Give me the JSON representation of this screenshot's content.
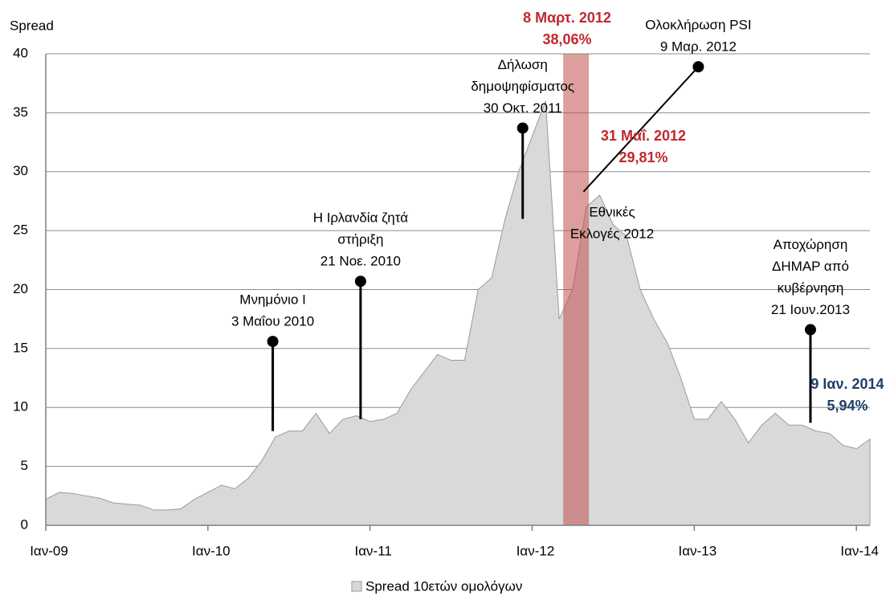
{
  "chart_data": {
    "type": "area",
    "y_axis_label": "Spread",
    "categories": [
      "Ιαν-09",
      null,
      null,
      null,
      null,
      null,
      null,
      null,
      null,
      null,
      null,
      null,
      "Ιαν-10",
      null,
      null,
      null,
      null,
      null,
      null,
      null,
      null,
      null,
      null,
      null,
      "Ιαν-11",
      null,
      null,
      null,
      null,
      null,
      null,
      null,
      null,
      null,
      null,
      null,
      "Ιαν-12",
      null,
      null,
      null,
      null,
      null,
      null,
      null,
      null,
      null,
      null,
      null,
      "Ιαν-13",
      null,
      null,
      null,
      null,
      null,
      null,
      null,
      null,
      null,
      null,
      null,
      "Ιαν-14",
      null
    ],
    "series": [
      {
        "name": "Spread 10ετών ομολόγων",
        "color": "#d9d9d9",
        "edge": "#9a9a9a",
        "values": [
          2.2,
          2.8,
          2.7,
          2.5,
          2.3,
          1.9,
          1.8,
          1.7,
          1.3,
          1.3,
          1.4,
          2.2,
          2.8,
          3.4,
          3.1,
          4.0,
          5.5,
          7.5,
          8.0,
          8.0,
          9.5,
          7.8,
          9.0,
          9.3,
          8.8,
          9.0,
          9.5,
          11.5,
          13.0,
          14.5,
          14.0,
          14.0,
          20.0,
          21.0,
          26.0,
          30.0,
          33.0,
          36.0,
          17.5,
          20.0,
          27.0,
          28.0,
          25.5,
          24.5,
          20.0,
          17.5,
          15.5,
          12.5,
          9.0,
          9.0,
          10.5,
          9.0,
          7.0,
          8.5,
          9.5,
          8.5,
          8.5,
          8.0,
          7.8,
          6.8,
          6.5,
          7.3
        ]
      }
    ],
    "ylim": [
      0,
      40
    ],
    "yticks": [
      0,
      5,
      10,
      15,
      20,
      25,
      30,
      35,
      40
    ],
    "grid": true,
    "shaded_range": {
      "from": 38.3,
      "to": 40.2,
      "color": "#c0504d"
    },
    "annotations": [
      {
        "text": [
          "Μνημόνιο Ι",
          "3 Μαΐου 2010"
        ],
        "x": 16.8,
        "y": 15.6,
        "y_end": 8
      },
      {
        "text": [
          "Η Ιρλανδία  ζητά",
          "στήριξη",
          "21 Νοε. 2010"
        ],
        "x": 23.3,
        "y": 20.7,
        "y_end": 9
      },
      {
        "text": [
          "Δήλωση",
          "δημοψηφίσματος",
          "30 Οκτ. 2011"
        ],
        "x": 35.3,
        "y": 33.7,
        "y_end": 26
      },
      {
        "text": [
          "Ολοκλήρωση PSI",
          "9 Μαρ. 2012"
        ],
        "x": 48.3,
        "y": 38.9,
        "x_end": 39.8,
        "y_end": 28.3
      },
      {
        "text": [
          "Αποχώρηση",
          "ΔΗΜΑΡ από",
          "κυβέρνηση",
          "21 Ιουν.2013"
        ],
        "x": 56.6,
        "y": 16.6,
        "y_end": 8.7
      }
    ],
    "labels": [
      {
        "text": [
          "8 Μαρτ. 2012",
          "38,06%"
        ],
        "color": "#c0282d"
      },
      {
        "text": [
          "31 Μαΐ. 2012",
          "29,81%"
        ],
        "color": "#c0282d"
      },
      {
        "text": [
          "9 Ιαν. 2014",
          "5,94%"
        ],
        "color": "#1f3f66"
      },
      {
        "text": [
          "Εθνικές",
          "Εκλογές 2012"
        ],
        "color": "#000000"
      }
    ]
  }
}
